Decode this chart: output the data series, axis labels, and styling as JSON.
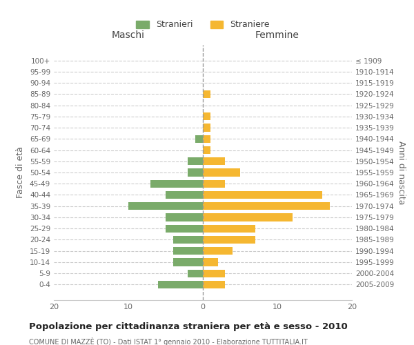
{
  "age_groups": [
    "0-4",
    "5-9",
    "10-14",
    "15-19",
    "20-24",
    "25-29",
    "30-34",
    "35-39",
    "40-44",
    "45-49",
    "50-54",
    "55-59",
    "60-64",
    "65-69",
    "70-74",
    "75-79",
    "80-84",
    "85-89",
    "90-94",
    "95-99",
    "100+"
  ],
  "birth_years": [
    "2005-2009",
    "2000-2004",
    "1995-1999",
    "1990-1994",
    "1985-1989",
    "1980-1984",
    "1975-1979",
    "1970-1974",
    "1965-1969",
    "1960-1964",
    "1955-1959",
    "1950-1954",
    "1945-1949",
    "1940-1944",
    "1935-1939",
    "1930-1934",
    "1925-1929",
    "1920-1924",
    "1915-1919",
    "1910-1914",
    "≤ 1909"
  ],
  "maschi": [
    6,
    2,
    4,
    4,
    4,
    5,
    5,
    10,
    5,
    7,
    2,
    2,
    0,
    1,
    0,
    0,
    0,
    0,
    0,
    0,
    0
  ],
  "femmine": [
    3,
    3,
    2,
    4,
    7,
    7,
    12,
    17,
    16,
    3,
    5,
    3,
    1,
    1,
    1,
    1,
    0,
    1,
    0,
    0,
    0
  ],
  "color_maschi": "#7aab6a",
  "color_femmine": "#f5b731",
  "title": "Popolazione per cittadinanza straniera per età e sesso - 2010",
  "subtitle": "COMUNE DI MAZZÈ (TO) - Dati ISTAT 1° gennaio 2010 - Elaborazione TUTTITALIA.IT",
  "xlabel_left": "Maschi",
  "xlabel_right": "Femmine",
  "ylabel_left": "Fasce di età",
  "ylabel_right": "Anni di nascita",
  "legend_maschi": "Stranieri",
  "legend_femmine": "Straniere",
  "xlim": 20,
  "background_color": "#ffffff",
  "grid_color": "#cccccc"
}
